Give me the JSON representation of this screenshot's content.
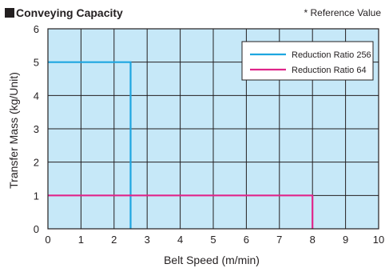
{
  "header": {
    "title": "Conveying Capacity",
    "note": "* Reference Value"
  },
  "chart_data": {
    "type": "line",
    "title": "Conveying Capacity",
    "xlabel": "Belt Speed (m/min)",
    "ylabel": "Transfer Mass (kg/Unit)",
    "xlim": [
      0,
      10
    ],
    "ylim": [
      0,
      6
    ],
    "xticks": [
      "0",
      "1",
      "2",
      "3",
      "4",
      "5",
      "6",
      "7",
      "8",
      "9",
      "10"
    ],
    "yticks": [
      "0",
      "1",
      "2",
      "3",
      "4",
      "5",
      "6"
    ],
    "grid": true,
    "legend_position": "top-right",
    "background": "#c6e8f8",
    "series": [
      {
        "name": "Reduction Ratio 256",
        "color": "#1ea6e0",
        "points": [
          [
            0,
            5
          ],
          [
            2.5,
            5
          ],
          [
            2.5,
            0
          ]
        ]
      },
      {
        "name": "Reduction Ratio 64",
        "color": "#e0258a",
        "points": [
          [
            0,
            1
          ],
          [
            8,
            1
          ],
          [
            8,
            0
          ]
        ]
      }
    ]
  }
}
